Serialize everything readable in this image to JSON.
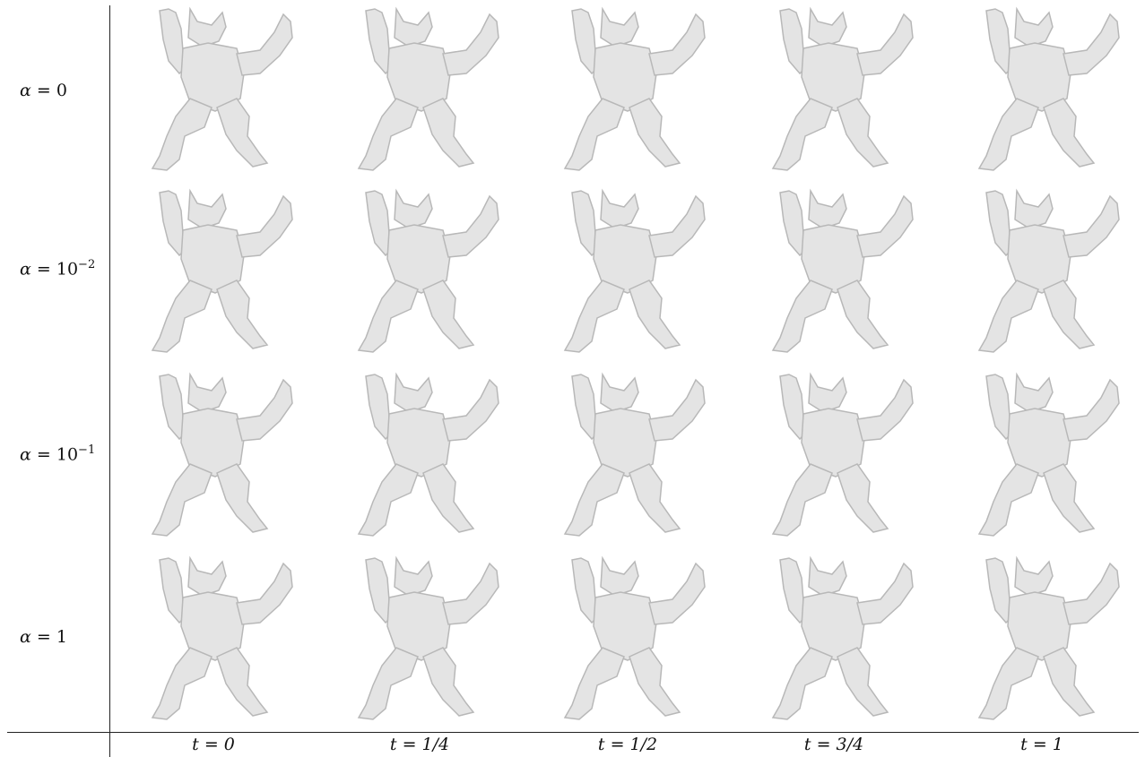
{
  "figure": {
    "row_labels": [
      {
        "var": "α",
        "eq": "=",
        "value": "0"
      },
      {
        "var": "α",
        "eq": "=",
        "value": "10",
        "exp": "−2"
      },
      {
        "var": "α",
        "eq": "=",
        "value": "10",
        "exp": "−1"
      },
      {
        "var": "α",
        "eq": "=",
        "value": "1"
      }
    ],
    "column_labels": [
      {
        "var": "t",
        "eq": "=",
        "value": "0"
      },
      {
        "var": "t",
        "eq": "=",
        "value": "1/4"
      },
      {
        "var": "t",
        "eq": "=",
        "value": "1/2"
      },
      {
        "var": "t",
        "eq": "=",
        "value": "3/4"
      },
      {
        "var": "t",
        "eq": "=",
        "value": "1"
      }
    ],
    "colors": {
      "highlight": "#3f6fe6",
      "surface": "#e4e4e4",
      "shade": "#b8b8b8"
    },
    "cells": [
      [
        "left-half",
        "band-chest",
        "band-chest",
        "band-chest",
        "right-half"
      ],
      [
        "left-half",
        "band-chest",
        "band-chest",
        "band-chest",
        "right-half"
      ],
      [
        "left-half",
        "diffuse",
        "diffuse",
        "diffuse",
        "right-half"
      ],
      [
        "left-half",
        "full",
        "full",
        "full",
        "right-half"
      ]
    ]
  }
}
